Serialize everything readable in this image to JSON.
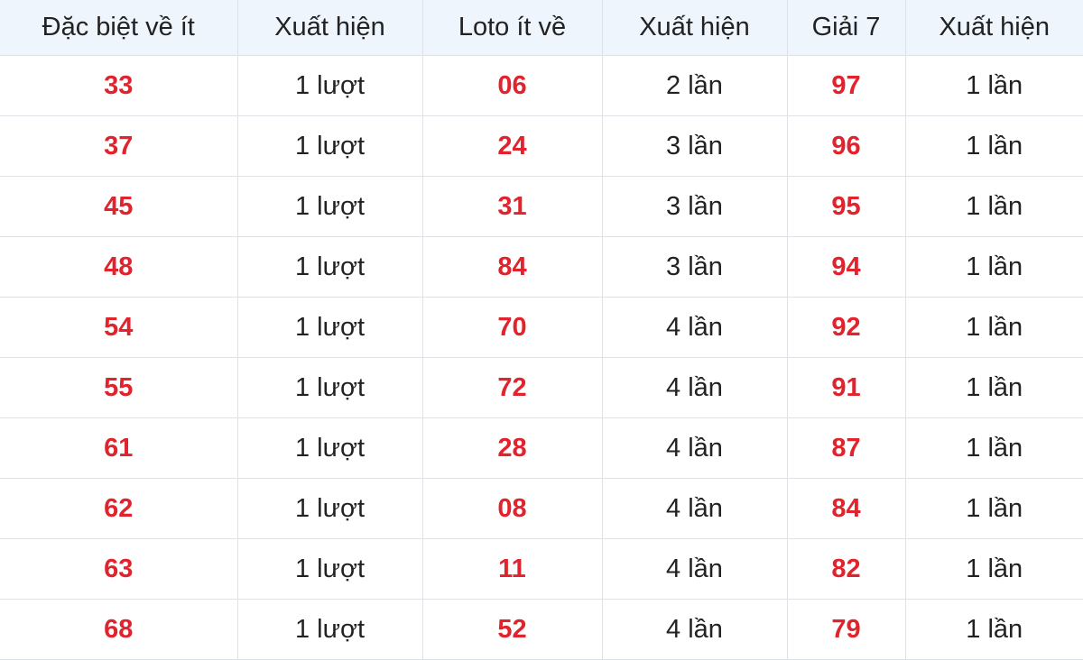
{
  "table": {
    "headers": [
      "Đặc biệt về ít",
      "Xuất hiện",
      "Loto ít về",
      "Xuất hiện",
      "Giải 7",
      "Xuất hiện"
    ],
    "rows": [
      [
        "33",
        "1 lượt",
        "06",
        "2 lần",
        "97",
        "1 lần"
      ],
      [
        "37",
        "1 lượt",
        "24",
        "3 lần",
        "96",
        "1 lần"
      ],
      [
        "45",
        "1 lượt",
        "31",
        "3 lần",
        "95",
        "1 lần"
      ],
      [
        "48",
        "1 lượt",
        "84",
        "3 lần",
        "94",
        "1 lần"
      ],
      [
        "54",
        "1 lượt",
        "70",
        "4 lần",
        "92",
        "1 lần"
      ],
      [
        "55",
        "1 lượt",
        "72",
        "4 lần",
        "91",
        "1 lần"
      ],
      [
        "61",
        "1 lượt",
        "28",
        "4 lần",
        "87",
        "1 lần"
      ],
      [
        "62",
        "1 lượt",
        "08",
        "4 lần",
        "84",
        "1 lần"
      ],
      [
        "63",
        "1 lượt",
        "11",
        "4 lần",
        "82",
        "1 lần"
      ],
      [
        "68",
        "1 lượt",
        "52",
        "4 lần",
        "79",
        "1 lần"
      ]
    ]
  },
  "colors": {
    "number": "#e0232c",
    "header_bg": "#eef5fd",
    "border": "#dfe2e6"
  }
}
